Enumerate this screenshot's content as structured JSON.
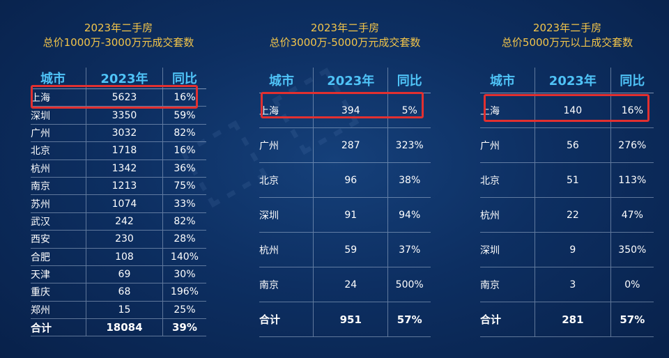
{
  "colors": {
    "title": "#f3c54a",
    "header": "#4fc3f7",
    "highlight": "#e23030",
    "text": "#ffffff"
  },
  "panels": [
    {
      "title_line1": "2023年二手房",
      "title_line2": "总价1000万-3000万元成交套数",
      "headers": [
        "城市",
        "2023年",
        "同比"
      ],
      "rows": [
        [
          "上海",
          "5623",
          "16%"
        ],
        [
          "深圳",
          "3350",
          "59%"
        ],
        [
          "广州",
          "3032",
          "82%"
        ],
        [
          "北京",
          "1718",
          "16%"
        ],
        [
          "杭州",
          "1342",
          "36%"
        ],
        [
          "南京",
          "1213",
          "75%"
        ],
        [
          "苏州",
          "1074",
          "33%"
        ],
        [
          "武汉",
          "242",
          "82%"
        ],
        [
          "西安",
          "230",
          "28%"
        ],
        [
          "合肥",
          "108",
          "140%"
        ],
        [
          "天津",
          "69",
          "30%"
        ],
        [
          "重庆",
          "68",
          "196%"
        ],
        [
          "郑州",
          "15",
          "25%"
        ]
      ],
      "total": [
        "合计",
        "18084",
        "39%"
      ]
    },
    {
      "title_line1": "2023年二手房",
      "title_line2": "总价3000万-5000万元成交套数",
      "headers": [
        "城市",
        "2023年",
        "同比"
      ],
      "rows": [
        [
          "上海",
          "394",
          "5%"
        ],
        [
          "广州",
          "287",
          "323%"
        ],
        [
          "北京",
          "96",
          "38%"
        ],
        [
          "深圳",
          "91",
          "94%"
        ],
        [
          "杭州",
          "59",
          "37%"
        ],
        [
          "南京",
          "24",
          "500%"
        ]
      ],
      "total": [
        "合计",
        "951",
        "57%"
      ]
    },
    {
      "title_line1": "2023年二手房",
      "title_line2": "总价5000万元以上成交套数",
      "headers": [
        "城市",
        "2023年",
        "同比"
      ],
      "rows": [
        [
          "上海",
          "140",
          "16%"
        ],
        [
          "广州",
          "56",
          "276%"
        ],
        [
          "北京",
          "51",
          "113%"
        ],
        [
          "杭州",
          "22",
          "47%"
        ],
        [
          "深圳",
          "9",
          "350%"
        ],
        [
          "南京",
          "3",
          "0%"
        ]
      ],
      "total": [
        "合计",
        "281",
        "57%"
      ]
    }
  ]
}
